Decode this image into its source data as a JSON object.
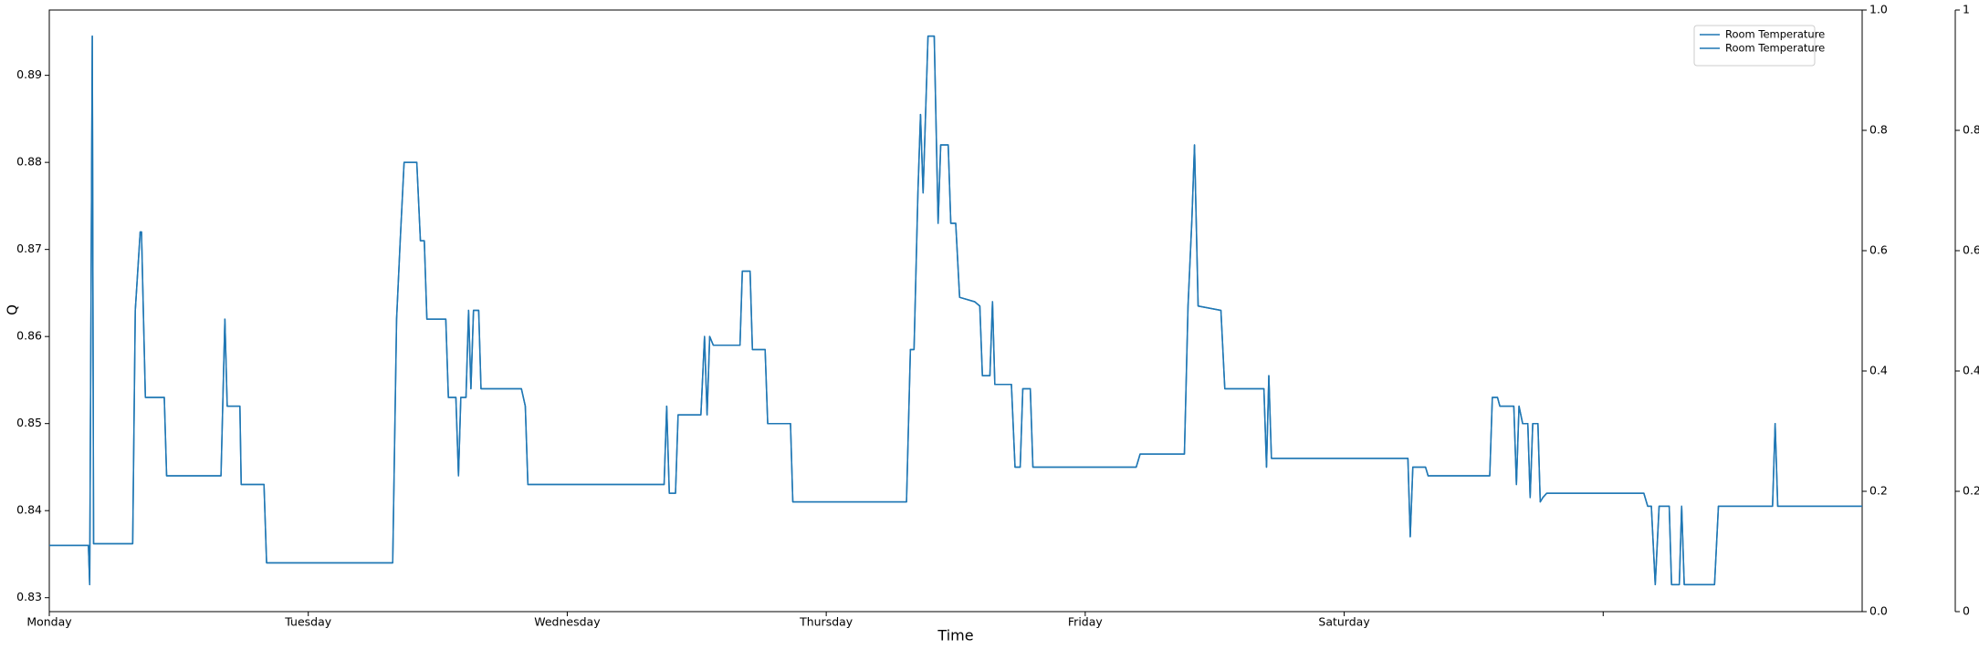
{
  "chart_data": {
    "type": "line",
    "xlabel": "Time",
    "ylabel": "Q",
    "xlim": [
      0,
      7
    ],
    "xticks": [
      {
        "value": 0,
        "label": "Monday"
      },
      {
        "value": 1,
        "label": "Tuesday"
      },
      {
        "value": 2,
        "label": "Wednesday"
      },
      {
        "value": 3,
        "label": "Thursday"
      },
      {
        "value": 4,
        "label": "Friday"
      },
      {
        "value": 5,
        "label": "Saturday"
      },
      {
        "value": 6,
        "label": null
      }
    ],
    "ylim": [
      0.8284,
      0.8975
    ],
    "yticks": [
      0.83,
      0.84,
      0.85,
      0.86,
      0.87,
      0.88,
      0.89
    ],
    "y2lim": [
      0,
      1
    ],
    "y2ticks": [
      {
        "value": 0,
        "label": "0.0"
      },
      0.2,
      0.4,
      0.6,
      0.8,
      {
        "value": 1,
        "label": "1.0"
      }
    ],
    "y3lim": [
      0,
      1
    ],
    "y3ticks": [
      0,
      0.2,
      0.4,
      0.6,
      0.8,
      1
    ],
    "legend": "upper right",
    "x": [
      0,
      0.151,
      0.156,
      0.166,
      0.171,
      0.322,
      0.332,
      0.351,
      0.356,
      0.371,
      0.444,
      0.453,
      0.663,
      0.678,
      0.687,
      0.736,
      0.741,
      0.829,
      0.839,
      1.326,
      1.341,
      1.355,
      1.37,
      1.419,
      1.433,
      1.448,
      1.458,
      1.531,
      1.541,
      1.57,
      1.58,
      1.589,
      1.609,
      1.619,
      1.628,
      1.638,
      1.658,
      1.667,
      1.823,
      1.838,
      1.848,
      2.374,
      2.384,
      2.394,
      2.418,
      2.428,
      2.516,
      2.53,
      2.54,
      2.55,
      2.564,
      2.667,
      2.676,
      2.706,
      2.715,
      2.764,
      2.774,
      2.862,
      2.871,
      3.31,
      3.325,
      3.339,
      3.354,
      3.364,
      3.374,
      3.393,
      3.417,
      3.432,
      3.442,
      3.471,
      3.481,
      3.5,
      3.515,
      3.573,
      3.593,
      3.603,
      3.632,
      3.642,
      3.651,
      3.715,
      3.729,
      3.749,
      3.759,
      3.788,
      3.798,
      4.197,
      4.212,
      4.383,
      4.397,
      4.412,
      4.422,
      4.436,
      4.524,
      4.539,
      4.69,
      4.7,
      4.709,
      4.719,
      5.246,
      5.255,
      5.265,
      5.314,
      5.324,
      5.562,
      5.572,
      5.592,
      5.601,
      5.655,
      5.665,
      5.675,
      5.689,
      5.709,
      5.718,
      5.728,
      5.748,
      5.757,
      5.767,
      5.782,
      6.157,
      6.172,
      6.186,
      6.201,
      6.216,
      6.255,
      6.264,
      6.294,
      6.303,
      6.313,
      6.43,
      6.445,
      6.654,
      6.664,
      6.674,
      7
    ],
    "series": [
      {
        "name": "Room Temperature",
        "color": "#1f77b4",
        "values": [
          0.836,
          0.836,
          0.8315,
          0.8945,
          0.8362,
          0.8362,
          0.863,
          0.872,
          0.872,
          0.853,
          0.853,
          0.844,
          0.844,
          0.862,
          0.852,
          0.852,
          0.843,
          0.843,
          0.834,
          0.834,
          0.862,
          0.871,
          0.88,
          0.88,
          0.871,
          0.871,
          0.862,
          0.862,
          0.853,
          0.853,
          0.844,
          0.853,
          0.853,
          0.863,
          0.854,
          0.863,
          0.863,
          0.854,
          0.854,
          0.852,
          0.843,
          0.843,
          0.852,
          0.842,
          0.842,
          0.851,
          0.851,
          0.86,
          0.851,
          0.86,
          0.859,
          0.859,
          0.8675,
          0.8675,
          0.8585,
          0.8585,
          0.85,
          0.85,
          0.841,
          0.841,
          0.8585,
          0.8585,
          0.8765,
          0.8855,
          0.8765,
          0.8945,
          0.8945,
          0.873,
          0.882,
          0.882,
          0.873,
          0.873,
          0.8645,
          0.864,
          0.8635,
          0.8555,
          0.8555,
          0.864,
          0.8545,
          0.8545,
          0.845,
          0.845,
          0.854,
          0.854,
          0.845,
          0.845,
          0.8465,
          0.8465,
          0.8635,
          0.8735,
          0.882,
          0.8635,
          0.863,
          0.854,
          0.854,
          0.845,
          0.8555,
          0.846,
          0.846,
          0.837,
          0.845,
          0.845,
          0.844,
          0.844,
          0.853,
          0.853,
          0.852,
          0.852,
          0.843,
          0.852,
          0.85,
          0.85,
          0.8415,
          0.85,
          0.85,
          0.841,
          0.8415,
          0.842,
          0.842,
          0.8405,
          0.8405,
          0.8315,
          0.8405,
          0.8405,
          0.8315,
          0.8315,
          0.8405,
          0.8315,
          0.8315,
          0.8405,
          0.8405,
          0.85,
          0.8405,
          0.8405
        ]
      },
      {
        "name": "Room Temperature",
        "color": "#1f77b4",
        "values": [
          0.836,
          0.836,
          0.8315,
          0.8945,
          0.8362,
          0.8362,
          0.863,
          0.872,
          0.872,
          0.853,
          0.853,
          0.844,
          0.844,
          0.862,
          0.852,
          0.852,
          0.843,
          0.843,
          0.834,
          0.834,
          0.862,
          0.871,
          0.88,
          0.88,
          0.871,
          0.871,
          0.862,
          0.862,
          0.853,
          0.853,
          0.844,
          0.853,
          0.853,
          0.863,
          0.854,
          0.863,
          0.863,
          0.854,
          0.854,
          0.852,
          0.843,
          0.843,
          0.852,
          0.842,
          0.842,
          0.851,
          0.851,
          0.86,
          0.851,
          0.86,
          0.859,
          0.859,
          0.8675,
          0.8675,
          0.8585,
          0.8585,
          0.85,
          0.85,
          0.841,
          0.841,
          0.8585,
          0.8585,
          0.8765,
          0.8855,
          0.8765,
          0.8945,
          0.8945,
          0.873,
          0.882,
          0.882,
          0.873,
          0.873,
          0.8645,
          0.864,
          0.8635,
          0.8555,
          0.8555,
          0.864,
          0.8545,
          0.8545,
          0.845,
          0.845,
          0.854,
          0.854,
          0.845,
          0.845,
          0.8465,
          0.8465,
          0.8635,
          0.8735,
          0.882,
          0.8635,
          0.863,
          0.854,
          0.854,
          0.845,
          0.8555,
          0.846,
          0.846,
          0.837,
          0.845,
          0.845,
          0.844,
          0.844,
          0.853,
          0.853,
          0.852,
          0.852,
          0.843,
          0.852,
          0.85,
          0.85,
          0.8415,
          0.85,
          0.85,
          0.841,
          0.8415,
          0.842,
          0.842,
          0.8405,
          0.8405,
          0.8315,
          0.8405,
          0.8405,
          0.8315,
          0.8315,
          0.8405,
          0.8315,
          0.8315,
          0.8405,
          0.8405,
          0.85,
          0.8405,
          0.8405
        ]
      }
    ]
  }
}
